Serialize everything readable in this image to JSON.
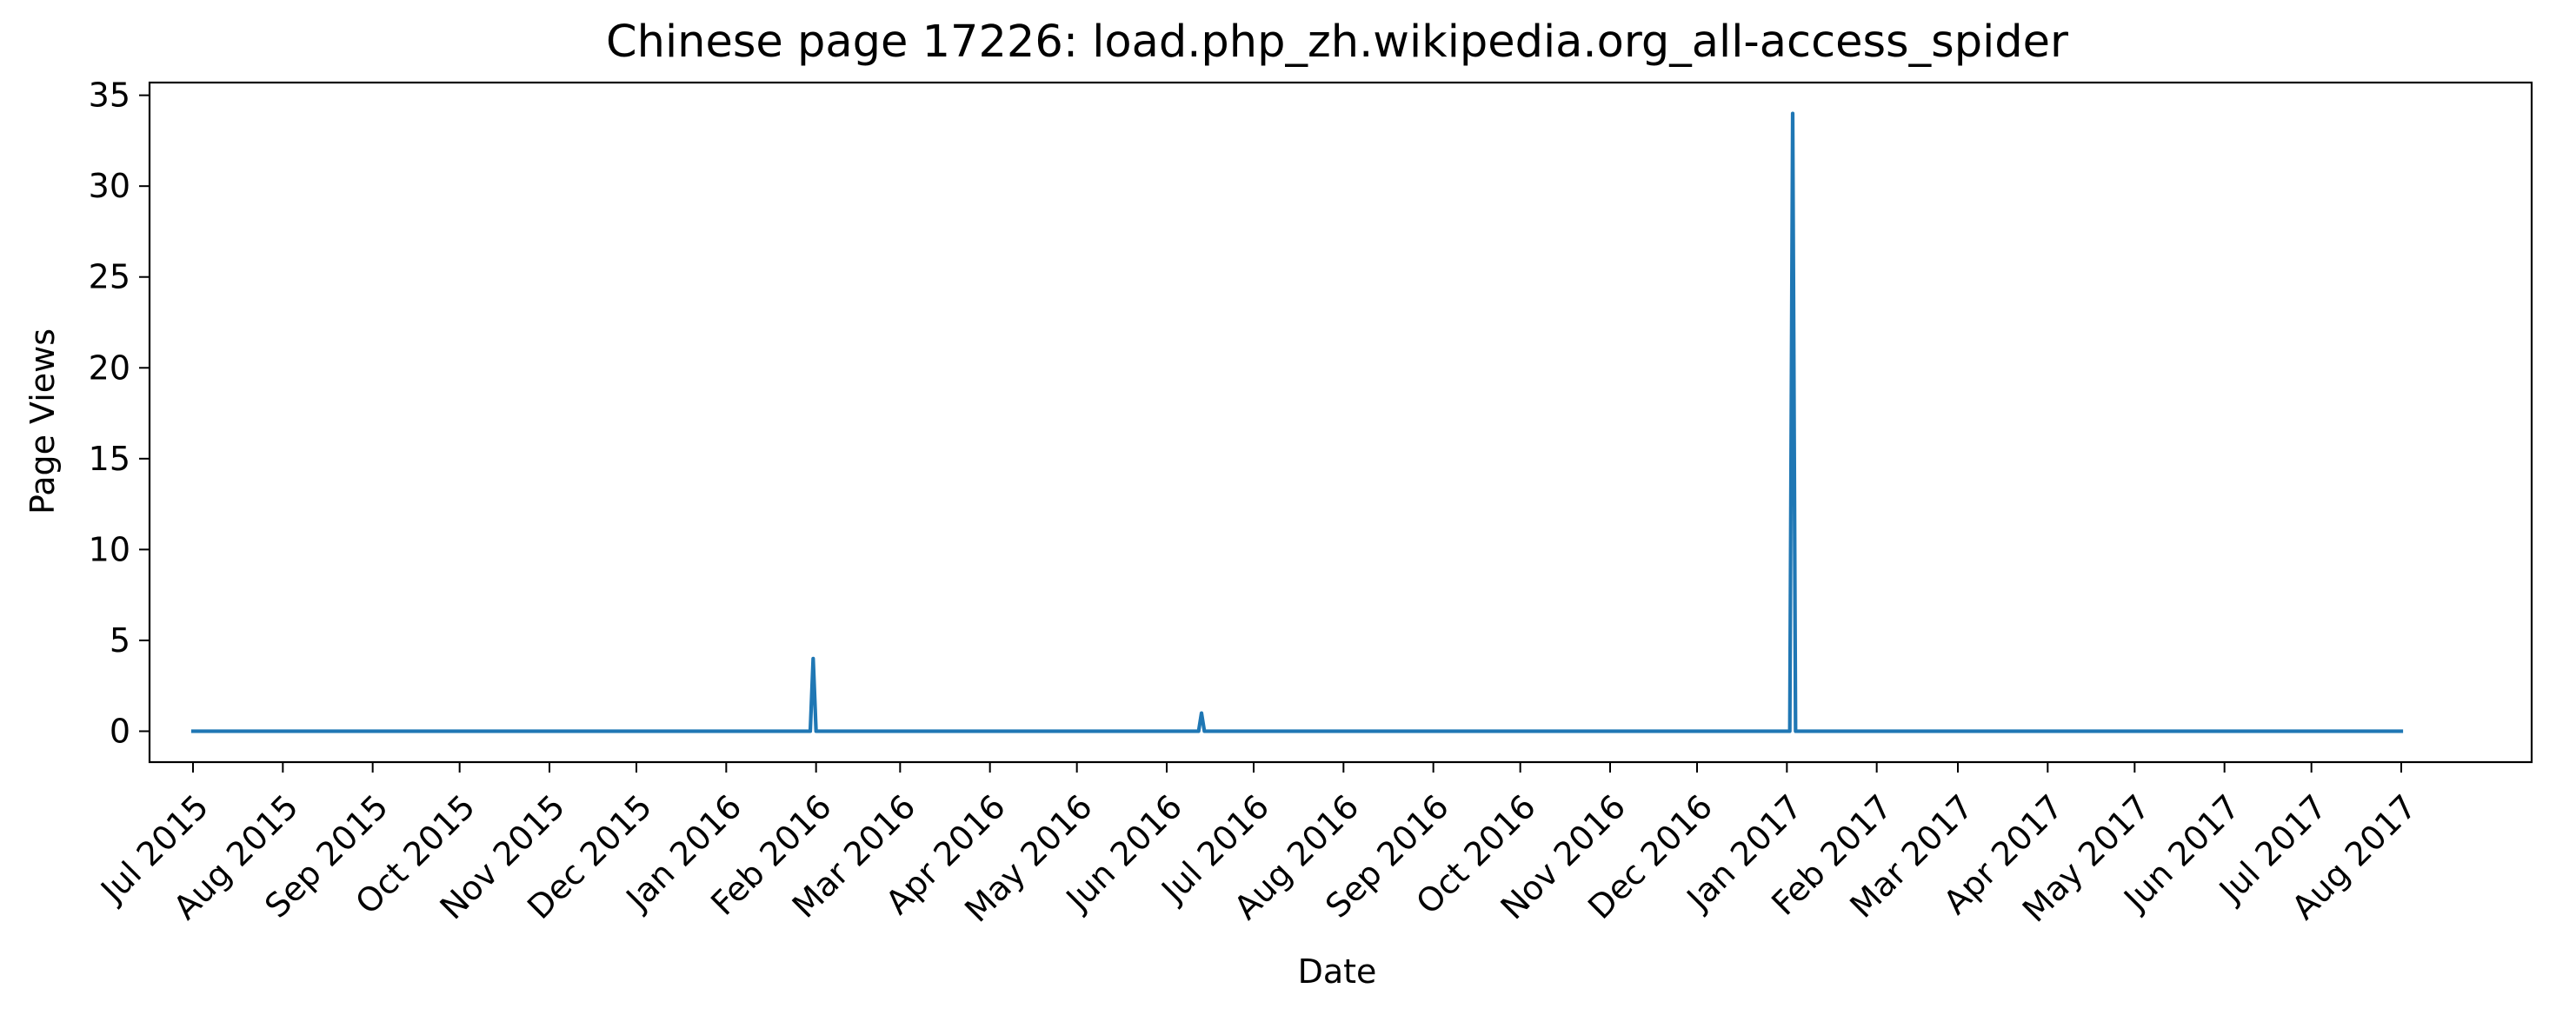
{
  "chart_data": {
    "type": "line",
    "title": "Chinese page 17226: load.php_zh.wikipedia.org_all-access_spider",
    "xlabel": "Date",
    "ylabel": "Page Views",
    "xlim": [
      "2015-06-16",
      "2017-09-15"
    ],
    "ylim": [
      -1.7,
      35.7
    ],
    "yticks": [
      0,
      5,
      10,
      15,
      20,
      25,
      30,
      35
    ],
    "xticks": [
      {
        "date": "2015-07-01",
        "label": "Jul 2015"
      },
      {
        "date": "2015-08-01",
        "label": "Aug 2015"
      },
      {
        "date": "2015-09-01",
        "label": "Sep 2015"
      },
      {
        "date": "2015-10-01",
        "label": "Oct 2015"
      },
      {
        "date": "2015-11-01",
        "label": "Nov 2015"
      },
      {
        "date": "2015-12-01",
        "label": "Dec 2015"
      },
      {
        "date": "2016-01-01",
        "label": "Jan 2016"
      },
      {
        "date": "2016-02-01",
        "label": "Feb 2016"
      },
      {
        "date": "2016-03-01",
        "label": "Mar 2016"
      },
      {
        "date": "2016-04-01",
        "label": "Apr 2016"
      },
      {
        "date": "2016-05-01",
        "label": "May 2016"
      },
      {
        "date": "2016-06-01",
        "label": "Jun 2016"
      },
      {
        "date": "2016-07-01",
        "label": "Jul 2016"
      },
      {
        "date": "2016-08-01",
        "label": "Aug 2016"
      },
      {
        "date": "2016-09-01",
        "label": "Sep 2016"
      },
      {
        "date": "2016-10-01",
        "label": "Oct 2016"
      },
      {
        "date": "2016-11-01",
        "label": "Nov 2016"
      },
      {
        "date": "2016-12-01",
        "label": "Dec 2016"
      },
      {
        "date": "2017-01-01",
        "label": "Jan 2017"
      },
      {
        "date": "2017-02-01",
        "label": "Feb 2017"
      },
      {
        "date": "2017-03-01",
        "label": "Mar 2017"
      },
      {
        "date": "2017-04-01",
        "label": "Apr 2017"
      },
      {
        "date": "2017-05-01",
        "label": "May 2017"
      },
      {
        "date": "2017-06-01",
        "label": "Jun 2017"
      },
      {
        "date": "2017-07-01",
        "label": "Jul 2017"
      },
      {
        "date": "2017-08-01",
        "label": "Aug 2017"
      }
    ],
    "grid": false,
    "series": [
      {
        "color": "#1f77b4",
        "points": [
          {
            "x": "2015-07-01",
            "y": 0
          },
          {
            "x": "2016-01-30",
            "y": 0
          },
          {
            "x": "2016-01-31",
            "y": 4
          },
          {
            "x": "2016-02-01",
            "y": 0
          },
          {
            "x": "2016-06-12",
            "y": 0
          },
          {
            "x": "2016-06-13",
            "y": 1
          },
          {
            "x": "2016-06-14",
            "y": 0
          },
          {
            "x": "2017-01-02",
            "y": 0
          },
          {
            "x": "2017-01-03",
            "y": 34
          },
          {
            "x": "2017-01-04",
            "y": 0
          },
          {
            "x": "2017-08-01",
            "y": 0
          }
        ]
      }
    ]
  }
}
